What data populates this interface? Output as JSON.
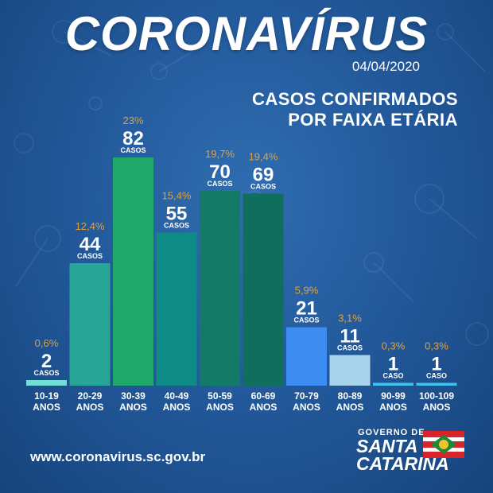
{
  "header": {
    "title": "CORONAVÍRUS",
    "date": "04/04/2020",
    "subtitle_line1": "CASOS CONFIRMADOS",
    "subtitle_line2": "POR FAIXA ETÁRIA"
  },
  "footer": {
    "url": "www.coronavirus.sc.gov.br",
    "logo_line1": "GOVERNO DE",
    "logo_line2": "SANTA",
    "logo_line3": "CATARINA"
  },
  "chart_data": {
    "type": "bar",
    "categories": [
      [
        "10-19",
        "ANOS"
      ],
      [
        "20-29",
        "ANOS"
      ],
      [
        "30-39",
        "ANOS"
      ],
      [
        "40-49",
        "ANOS"
      ],
      [
        "50-59",
        "ANOS"
      ],
      [
        "60-69",
        "ANOS"
      ],
      [
        "70-79",
        "ANOS"
      ],
      [
        "80-89",
        "ANOS"
      ],
      [
        "90-99",
        "ANOS"
      ],
      [
        "100-109",
        "ANOS"
      ]
    ],
    "values": [
      2,
      44,
      82,
      55,
      70,
      69,
      21,
      11,
      1,
      1
    ],
    "percents": [
      "0,6%",
      "12,4%",
      "23%",
      "15,4%",
      "19,7%",
      "19,4%",
      "5,9%",
      "3,1%",
      "0,3%",
      "0,3%"
    ],
    "unit_labels": [
      "CASOS",
      "CASOS",
      "CASOS",
      "CASOS",
      "CASOS",
      "CASOS",
      "CASOS",
      "CASOS",
      "CASO",
      "CASO"
    ],
    "colors": [
      "#6ee0d4",
      "#27a596",
      "#1fa86a",
      "#0f8b86",
      "#137a66",
      "#0f6e5c",
      "#3d8cf2",
      "#a9d3ea",
      "#3ec4f0",
      "#3ec4f0"
    ],
    "ylim": [
      0,
      82
    ],
    "percent_color": "#e0a23c"
  }
}
